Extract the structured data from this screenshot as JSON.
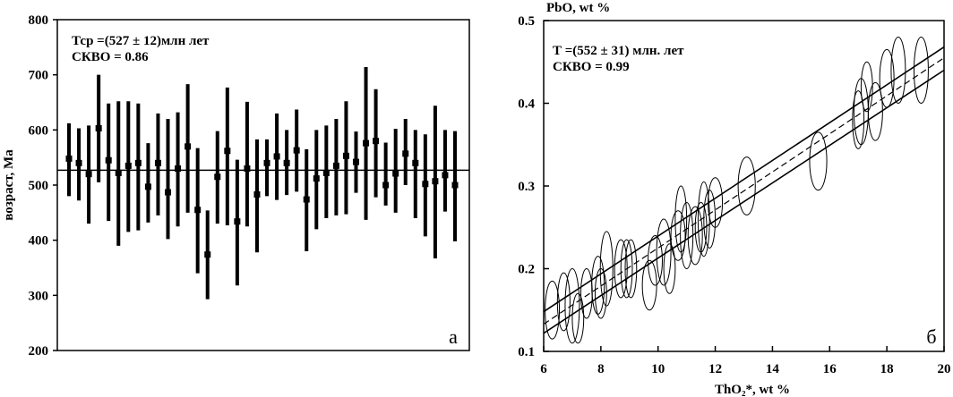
{
  "chart_data": [
    {
      "type": "scatter",
      "subtype": "age-errorbar",
      "ylabel": "возраст, Ма",
      "ylim": [
        200,
        800
      ],
      "yticks": [
        200,
        300,
        400,
        500,
        600,
        700,
        800
      ],
      "annotation_lines": [
        "Тср =(527 ± 12)млн  лет",
        "СКВО = 0.86"
      ],
      "panel_label": "а",
      "mean_age": 527,
      "points": [
        {
          "age": 548,
          "low": 480,
          "high": 612
        },
        {
          "age": 540,
          "low": 472,
          "high": 603
        },
        {
          "age": 520,
          "low": 430,
          "high": 608
        },
        {
          "age": 603,
          "low": 505,
          "high": 700
        },
        {
          "age": 545,
          "low": 435,
          "high": 648
        },
        {
          "age": 522,
          "low": 390,
          "high": 652
        },
        {
          "age": 535,
          "low": 415,
          "high": 652
        },
        {
          "age": 540,
          "low": 418,
          "high": 648
        },
        {
          "age": 497,
          "low": 432,
          "high": 576
        },
        {
          "age": 540,
          "low": 445,
          "high": 630
        },
        {
          "age": 487,
          "low": 402,
          "high": 620
        },
        {
          "age": 530,
          "low": 425,
          "high": 632
        },
        {
          "age": 570,
          "low": 450,
          "high": 683
        },
        {
          "age": 455,
          "low": 340,
          "high": 567
        },
        {
          "age": 374,
          "low": 293,
          "high": 454
        },
        {
          "age": 515,
          "low": 430,
          "high": 598
        },
        {
          "age": 562,
          "low": 427,
          "high": 677
        },
        {
          "age": 434,
          "low": 318,
          "high": 546
        },
        {
          "age": 530,
          "low": 425,
          "high": 651
        },
        {
          "age": 483,
          "low": 378,
          "high": 583
        },
        {
          "age": 540,
          "low": 480,
          "high": 583
        },
        {
          "age": 552,
          "low": 473,
          "high": 630
        },
        {
          "age": 540,
          "low": 482,
          "high": 600
        },
        {
          "age": 563,
          "low": 488,
          "high": 637
        },
        {
          "age": 474,
          "low": 380,
          "high": 565
        },
        {
          "age": 512,
          "low": 420,
          "high": 600
        },
        {
          "age": 522,
          "low": 440,
          "high": 608
        },
        {
          "age": 535,
          "low": 445,
          "high": 620
        },
        {
          "age": 553,
          "low": 447,
          "high": 652
        },
        {
          "age": 542,
          "low": 486,
          "high": 597
        },
        {
          "age": 576,
          "low": 437,
          "high": 714
        },
        {
          "age": 580,
          "low": 478,
          "high": 674
        },
        {
          "age": 500,
          "low": 463,
          "high": 577
        },
        {
          "age": 521,
          "low": 450,
          "high": 602
        },
        {
          "age": 557,
          "low": 500,
          "high": 620
        },
        {
          "age": 540,
          "low": 440,
          "high": 600
        },
        {
          "age": 502,
          "low": 407,
          "high": 592
        },
        {
          "age": 507,
          "low": 367,
          "high": 644
        },
        {
          "age": 518,
          "low": 452,
          "high": 600
        },
        {
          "age": 500,
          "low": 398,
          "high": 598
        }
      ]
    },
    {
      "type": "scatter",
      "subtype": "isochron-ellipses",
      "xlabel": "ThO₂*, wt %",
      "ylabel": "PbO, wt %",
      "xlim": [
        6,
        20
      ],
      "ylim": [
        0.1,
        0.5
      ],
      "xticks": [
        6,
        8,
        10,
        12,
        14,
        16,
        18,
        20
      ],
      "yticks": [
        0.1,
        0.2,
        0.3,
        0.4,
        0.5
      ],
      "annotation_lines": [
        "Т =(552 ± 31) млн. лет",
        "СКВО = 0.99"
      ],
      "panel_label": "б",
      "isochron": {
        "x0": 6,
        "y0": 0.133,
        "x1": 20,
        "y1": 0.455
      },
      "envelope_upper": {
        "x0": 6,
        "y0": 0.148,
        "x1": 20,
        "y1": 0.468
      },
      "envelope_lower": {
        "x0": 6,
        "y0": 0.122,
        "x1": 20,
        "y1": 0.44
      },
      "ellipses": [
        {
          "x": 6.3,
          "y": 0.15,
          "dx": 0.25,
          "dy": 0.035
        },
        {
          "x": 6.7,
          "y": 0.16,
          "dx": 0.22,
          "dy": 0.035
        },
        {
          "x": 7.0,
          "y": 0.155,
          "dx": 0.25,
          "dy": 0.045
        },
        {
          "x": 7.2,
          "y": 0.14,
          "dx": 0.2,
          "dy": 0.03
        },
        {
          "x": 7.5,
          "y": 0.17,
          "dx": 0.2,
          "dy": 0.03
        },
        {
          "x": 7.9,
          "y": 0.18,
          "dx": 0.22,
          "dy": 0.035
        },
        {
          "x": 8.0,
          "y": 0.17,
          "dx": 0.2,
          "dy": 0.03
        },
        {
          "x": 8.2,
          "y": 0.2,
          "dx": 0.22,
          "dy": 0.045
        },
        {
          "x": 8.7,
          "y": 0.2,
          "dx": 0.22,
          "dy": 0.035
        },
        {
          "x": 8.9,
          "y": 0.2,
          "dx": 0.2,
          "dy": 0.035
        },
        {
          "x": 9.05,
          "y": 0.2,
          "dx": 0.2,
          "dy": 0.035
        },
        {
          "x": 9.7,
          "y": 0.18,
          "dx": 0.25,
          "dy": 0.03
        },
        {
          "x": 9.9,
          "y": 0.21,
          "dx": 0.25,
          "dy": 0.03
        },
        {
          "x": 10.2,
          "y": 0.22,
          "dx": 0.25,
          "dy": 0.04
        },
        {
          "x": 10.4,
          "y": 0.2,
          "dx": 0.2,
          "dy": 0.03
        },
        {
          "x": 10.7,
          "y": 0.24,
          "dx": 0.25,
          "dy": 0.03
        },
        {
          "x": 10.8,
          "y": 0.26,
          "dx": 0.2,
          "dy": 0.04
        },
        {
          "x": 11.0,
          "y": 0.24,
          "dx": 0.22,
          "dy": 0.04
        },
        {
          "x": 11.3,
          "y": 0.24,
          "dx": 0.25,
          "dy": 0.035
        },
        {
          "x": 11.5,
          "y": 0.25,
          "dx": 0.2,
          "dy": 0.03
        },
        {
          "x": 11.6,
          "y": 0.26,
          "dx": 0.2,
          "dy": 0.045
        },
        {
          "x": 11.8,
          "y": 0.26,
          "dx": 0.2,
          "dy": 0.035
        },
        {
          "x": 12.0,
          "y": 0.28,
          "dx": 0.25,
          "dy": 0.03
        },
        {
          "x": 13.1,
          "y": 0.3,
          "dx": 0.3,
          "dy": 0.035
        },
        {
          "x": 15.6,
          "y": 0.33,
          "dx": 0.3,
          "dy": 0.035
        },
        {
          "x": 17.0,
          "y": 0.38,
          "dx": 0.2,
          "dy": 0.035
        },
        {
          "x": 17.1,
          "y": 0.39,
          "dx": 0.25,
          "dy": 0.04
        },
        {
          "x": 17.3,
          "y": 0.42,
          "dx": 0.2,
          "dy": 0.03
        },
        {
          "x": 17.6,
          "y": 0.39,
          "dx": 0.25,
          "dy": 0.035
        },
        {
          "x": 18.0,
          "y": 0.43,
          "dx": 0.25,
          "dy": 0.035
        },
        {
          "x": 18.4,
          "y": 0.44,
          "dx": 0.25,
          "dy": 0.04
        },
        {
          "x": 19.2,
          "y": 0.44,
          "dx": 0.25,
          "dy": 0.04
        }
      ]
    }
  ]
}
